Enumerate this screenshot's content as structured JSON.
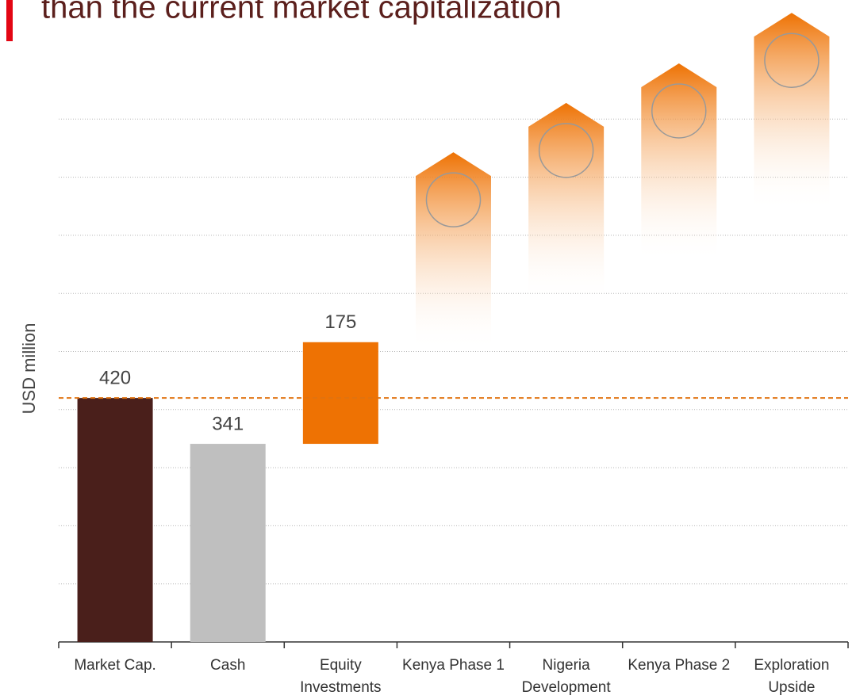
{
  "chart_data": {
    "type": "waterfall",
    "title": "than the current market capitalization",
    "y_label": "USD million",
    "categories": [
      "Market Cap.",
      "Cash",
      "Equity Investments",
      "Kenya Phase 1",
      "Nigeria Development",
      "Kenya Phase 2",
      "Exploration Upside"
    ],
    "values": [
      420,
      341,
      175,
      286,
      85,
      68,
      87
    ],
    "value_labels": [
      "420",
      "341",
      "175",
      null,
      null,
      null,
      null
    ],
    "colors": [
      "#4a1f1b",
      "#bfbfbf",
      "#ee7203",
      "#ee7203",
      "#ee7203",
      "#ee7203",
      "#ee7203"
    ],
    "ylim": [
      0,
      1000
    ],
    "yticks": [
      100,
      200,
      300,
      400,
      500,
      600,
      700,
      800,
      900
    ],
    "grid": true
  }
}
